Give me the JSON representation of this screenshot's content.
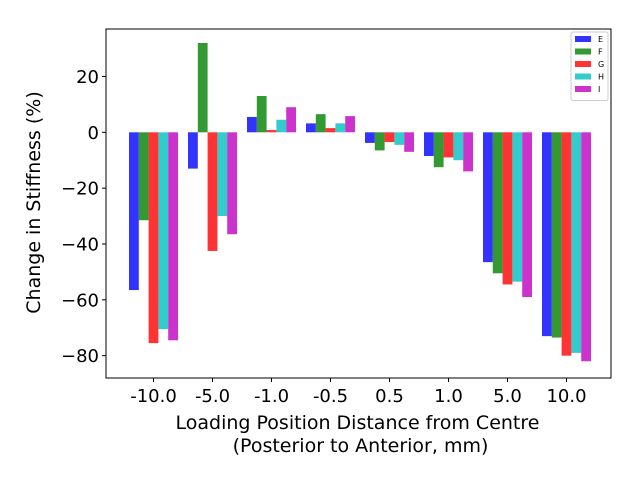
{
  "chart_data": {
    "type": "bar",
    "categories": [
      "-10.0",
      "-5.0",
      "-1.0",
      "-0.5",
      "0.5",
      "1.0",
      "5.0",
      "10.0"
    ],
    "series": [
      {
        "name": "E",
        "color": "#0000ff",
        "values": [
          -56.5,
          -13,
          5.5,
          3.2,
          -3.8,
          -8.5,
          -46.5,
          -73
        ]
      },
      {
        "name": "F",
        "color": "#008000",
        "values": [
          -31.5,
          32,
          13,
          6.5,
          -6.5,
          -12.5,
          -50.5,
          -73.5
        ]
      },
      {
        "name": "G",
        "color": "#ff0000",
        "values": [
          -75.5,
          -42.5,
          0.8,
          1.5,
          -3.5,
          -9,
          -54.5,
          -80
        ]
      },
      {
        "name": "H",
        "color": "#00bfbf",
        "values": [
          -70.5,
          -30,
          4.5,
          3.2,
          -4.5,
          -10,
          -53.5,
          -79
        ]
      },
      {
        "name": "I",
        "color": "#bf00bf",
        "values": [
          -74.5,
          -36.5,
          9,
          5.8,
          -7,
          -14,
          -59,
          -82
        ]
      }
    ],
    "xlabel_lines": [
      "Loading Position Distance from Centre",
      "(Posterior to Anterior, mm)"
    ],
    "ylabel": "Change in Stiffness (%)",
    "yticks": [
      20,
      0,
      -20,
      -40,
      -60,
      -80
    ],
    "ylim": [
      -88,
      37
    ],
    "legend": "top-right"
  }
}
